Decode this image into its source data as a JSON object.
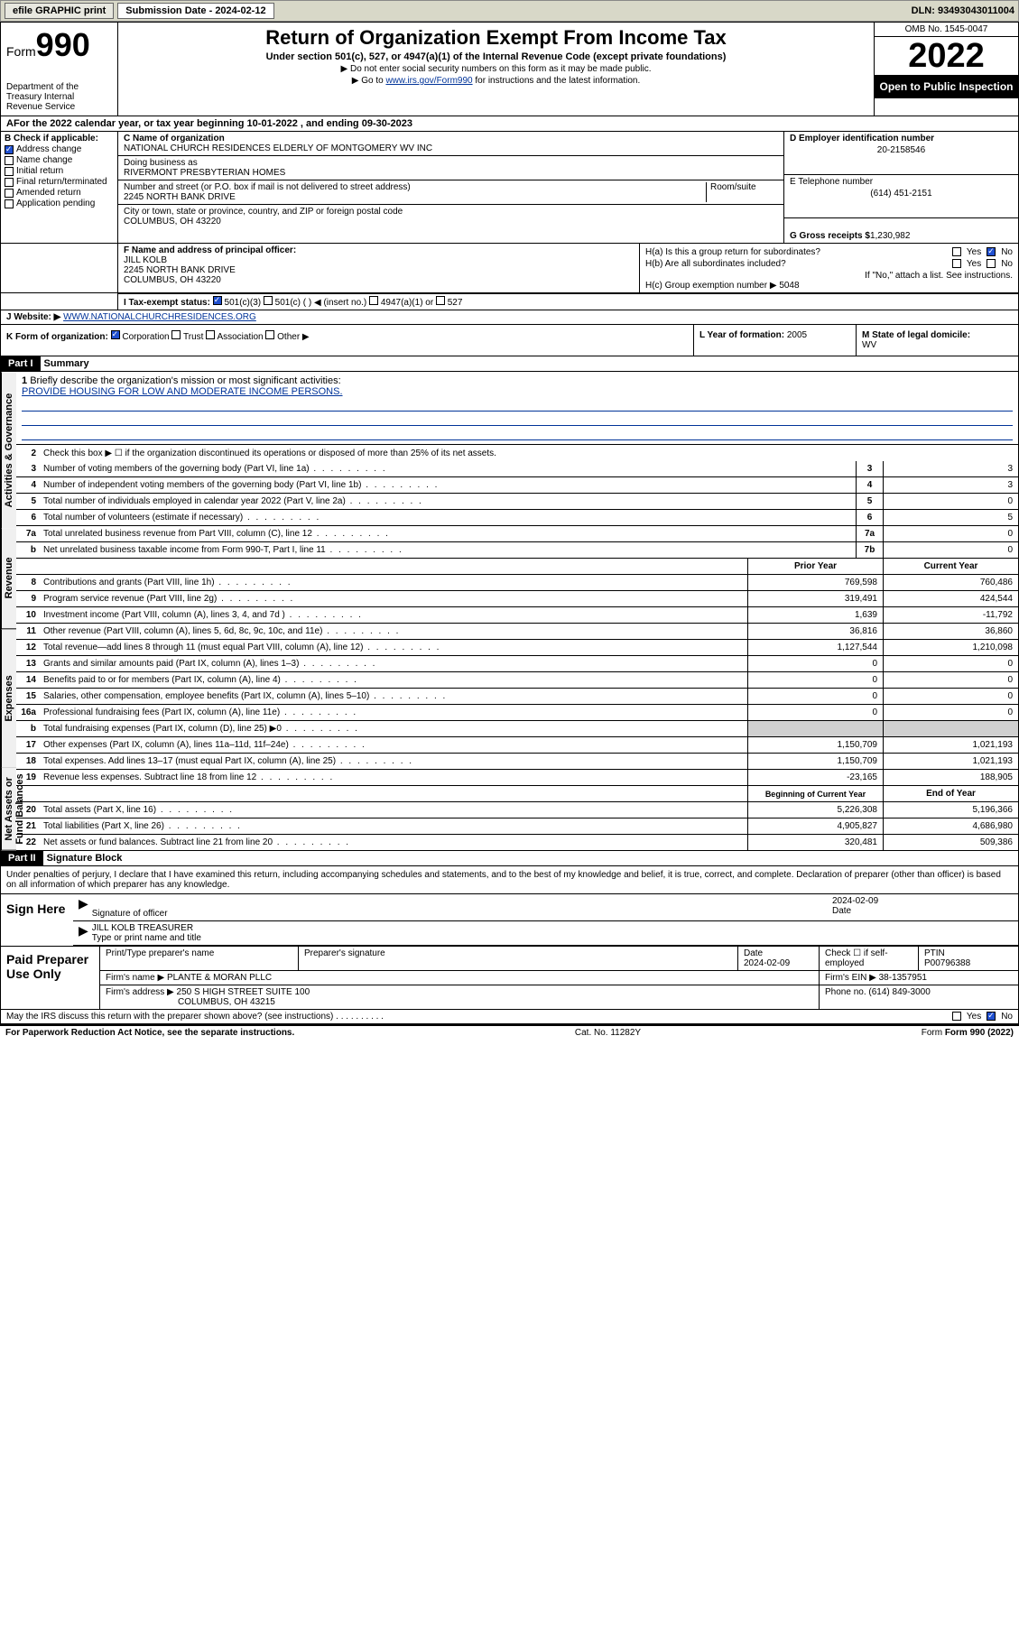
{
  "toolbar": {
    "efile": "efile GRAPHIC print",
    "subdate_label": "Submission Date - 2024-02-12",
    "dln": "DLN: 93493043011004"
  },
  "header": {
    "form_label": "Form",
    "form_num": "990",
    "dept": "Department of the Treasury\nInternal Revenue Service",
    "title": "Return of Organization Exempt From Income Tax",
    "subtitle": "Under section 501(c), 527, or 4947(a)(1) of the Internal Revenue Code (except private foundations)",
    "note1": "▶ Do not enter social security numbers on this form as it may be made public.",
    "note2_pre": "▶ Go to ",
    "note2_link": "www.irs.gov/Form990",
    "note2_post": " for instructions and the latest information.",
    "omb": "OMB No. 1545-0047",
    "year": "2022",
    "inspect": "Open to Public Inspection"
  },
  "line_a": "For the 2022 calendar year, or tax year beginning 10-01-2022   , and ending 09-30-2023",
  "sec_b": {
    "header": "B Check if applicable:",
    "items": [
      {
        "label": "Address change",
        "checked": true
      },
      {
        "label": "Name change",
        "checked": false
      },
      {
        "label": "Initial return",
        "checked": false
      },
      {
        "label": "Final return/terminated",
        "checked": false
      },
      {
        "label": "Amended return",
        "checked": false
      },
      {
        "label": "Application pending",
        "checked": false
      }
    ]
  },
  "sec_c": {
    "name_lbl": "C Name of organization",
    "name": "NATIONAL CHURCH RESIDENCES ELDERLY OF MONTGOMERY WV INC",
    "dba_lbl": "Doing business as",
    "dba": "RIVERMONT PRESBYTERIAN HOMES",
    "addr_lbl": "Number and street (or P.O. box if mail is not delivered to street address)",
    "addr": "2245 NORTH BANK DRIVE",
    "room_lbl": "Room/suite",
    "city_lbl": "City or town, state or province, country, and ZIP or foreign postal code",
    "city": "COLUMBUS, OH  43220"
  },
  "sec_d": {
    "ein_lbl": "D Employer identification number",
    "ein": "20-2158546",
    "phone_lbl": "E Telephone number",
    "phone": "(614) 451-2151",
    "gross_lbl": "G Gross receipts $",
    "gross": "1,230,982"
  },
  "sec_f": {
    "lbl": "F Name and address of principal officer:",
    "name": "JILL KOLB",
    "addr1": "2245 NORTH BANK DRIVE",
    "addr2": "COLUMBUS, OH  43220"
  },
  "sec_h": {
    "ha": "H(a)  Is this a group return for subordinates?",
    "hb": "H(b)  Are all subordinates included?",
    "hb_note": "If \"No,\" attach a list. See instructions.",
    "hc": "H(c)  Group exemption number ▶",
    "hc_val": "5048"
  },
  "sec_i": {
    "lbl": "I   Tax-exempt status:",
    "o1": "501(c)(3)",
    "o2": "501(c) (  ) ◀ (insert no.)",
    "o3": "4947(a)(1) or",
    "o4": "527"
  },
  "sec_j": {
    "lbl": "J   Website: ▶",
    "val": "WWW.NATIONALCHURCHRESIDENCES.ORG"
  },
  "sec_k": "K Form of organization:",
  "k_opts": [
    "Corporation",
    "Trust",
    "Association",
    "Other ▶"
  ],
  "sec_l": {
    "lbl": "L Year of formation:",
    "val": "2005"
  },
  "sec_m": {
    "lbl": "M State of legal domicile:",
    "val": "WV"
  },
  "part1": {
    "hdr": "Part I",
    "title": "Summary",
    "tabs": [
      "Activities & Governance",
      "Revenue",
      "Expenses",
      "Net Assets or Fund Balances"
    ],
    "line1": "Briefly describe the organization's mission or most significant activities:",
    "mission": "PROVIDE HOUSING FOR LOW AND MODERATE INCOME PERSONS.",
    "line2": "Check this box ▶ ☐  if the organization discontinued its operations or disposed of more than 25% of its net assets.",
    "gov_lines": [
      {
        "n": "3",
        "t": "Number of voting members of the governing body (Part VI, line 1a)",
        "box": "3",
        "v": "3"
      },
      {
        "n": "4",
        "t": "Number of independent voting members of the governing body (Part VI, line 1b)",
        "box": "4",
        "v": "3"
      },
      {
        "n": "5",
        "t": "Total number of individuals employed in calendar year 2022 (Part V, line 2a)",
        "box": "5",
        "v": "0"
      },
      {
        "n": "6",
        "t": "Total number of volunteers (estimate if necessary)",
        "box": "6",
        "v": "5"
      },
      {
        "n": "7a",
        "t": "Total unrelated business revenue from Part VIII, column (C), line 12",
        "box": "7a",
        "v": "0"
      },
      {
        "n": "b",
        "t": "Net unrelated business taxable income from Form 990-T, Part I, line 11",
        "box": "7b",
        "v": "0"
      }
    ],
    "col_hdrs": {
      "prior": "Prior Year",
      "current": "Current Year"
    },
    "rev_lines": [
      {
        "n": "8",
        "t": "Contributions and grants (Part VIII, line 1h)",
        "p": "769,598",
        "c": "760,486"
      },
      {
        "n": "9",
        "t": "Program service revenue (Part VIII, line 2g)",
        "p": "319,491",
        "c": "424,544"
      },
      {
        "n": "10",
        "t": "Investment income (Part VIII, column (A), lines 3, 4, and 7d )",
        "p": "1,639",
        "c": "-11,792"
      },
      {
        "n": "11",
        "t": "Other revenue (Part VIII, column (A), lines 5, 6d, 8c, 9c, 10c, and 11e)",
        "p": "36,816",
        "c": "36,860"
      },
      {
        "n": "12",
        "t": "Total revenue—add lines 8 through 11 (must equal Part VIII, column (A), line 12)",
        "p": "1,127,544",
        "c": "1,210,098"
      }
    ],
    "exp_lines": [
      {
        "n": "13",
        "t": "Grants and similar amounts paid (Part IX, column (A), lines 1–3)",
        "p": "0",
        "c": "0"
      },
      {
        "n": "14",
        "t": "Benefits paid to or for members (Part IX, column (A), line 4)",
        "p": "0",
        "c": "0"
      },
      {
        "n": "15",
        "t": "Salaries, other compensation, employee benefits (Part IX, column (A), lines 5–10)",
        "p": "0",
        "c": "0"
      },
      {
        "n": "16a",
        "t": "Professional fundraising fees (Part IX, column (A), line 11e)",
        "p": "0",
        "c": "0"
      },
      {
        "n": "b",
        "t": "Total fundraising expenses (Part IX, column (D), line 25) ▶0",
        "p": "",
        "c": "",
        "gray": true
      },
      {
        "n": "17",
        "t": "Other expenses (Part IX, column (A), lines 11a–11d, 11f–24e)",
        "p": "1,150,709",
        "c": "1,021,193"
      },
      {
        "n": "18",
        "t": "Total expenses. Add lines 13–17 (must equal Part IX, column (A), line 25)",
        "p": "1,150,709",
        "c": "1,021,193"
      },
      {
        "n": "19",
        "t": "Revenue less expenses. Subtract line 18 from line 12",
        "p": "-23,165",
        "c": "188,905"
      }
    ],
    "na_hdrs": {
      "beg": "Beginning of Current Year",
      "end": "End of Year"
    },
    "na_lines": [
      {
        "n": "20",
        "t": "Total assets (Part X, line 16)",
        "p": "5,226,308",
        "c": "5,196,366"
      },
      {
        "n": "21",
        "t": "Total liabilities (Part X, line 26)",
        "p": "4,905,827",
        "c": "4,686,980"
      },
      {
        "n": "22",
        "t": "Net assets or fund balances. Subtract line 21 from line 20",
        "p": "320,481",
        "c": "509,386"
      }
    ]
  },
  "part2": {
    "hdr": "Part II",
    "title": "Signature Block",
    "decl": "Under penalties of perjury, I declare that I have examined this return, including accompanying schedules and statements, and to the best of my knowledge and belief, it is true, correct, and complete. Declaration of preparer (other than officer) is based on all information of which preparer has any knowledge.",
    "sign_here": "Sign Here",
    "sig_officer": "Signature of officer",
    "sig_date": "2024-02-09",
    "date_lbl": "Date",
    "officer_name": "JILL KOLB  TREASURER",
    "type_name": "Type or print name and title",
    "paid_prep": "Paid Preparer Use Only",
    "prep_hdrs": [
      "Print/Type preparer's name",
      "Preparer's signature",
      "Date",
      "Check ☐ if self-employed",
      "PTIN"
    ],
    "prep_date": "2024-02-09",
    "ptin": "P00796388",
    "firm_name_lbl": "Firm's name      ▶",
    "firm_name": "PLANTE & MORAN PLLC",
    "firm_ein_lbl": "Firm's EIN ▶",
    "firm_ein": "38-1357951",
    "firm_addr_lbl": "Firm's address ▶",
    "firm_addr": "250 S HIGH STREET SUITE 100",
    "firm_city": "COLUMBUS, OH  43215",
    "phone_lbl": "Phone no.",
    "phone": "(614) 849-3000",
    "discuss": "May the IRS discuss this return with the preparer shown above? (see instructions)"
  },
  "footer": {
    "left": "For Paperwork Reduction Act Notice, see the separate instructions.",
    "mid": "Cat. No. 11282Y",
    "right": "Form 990 (2022)"
  }
}
